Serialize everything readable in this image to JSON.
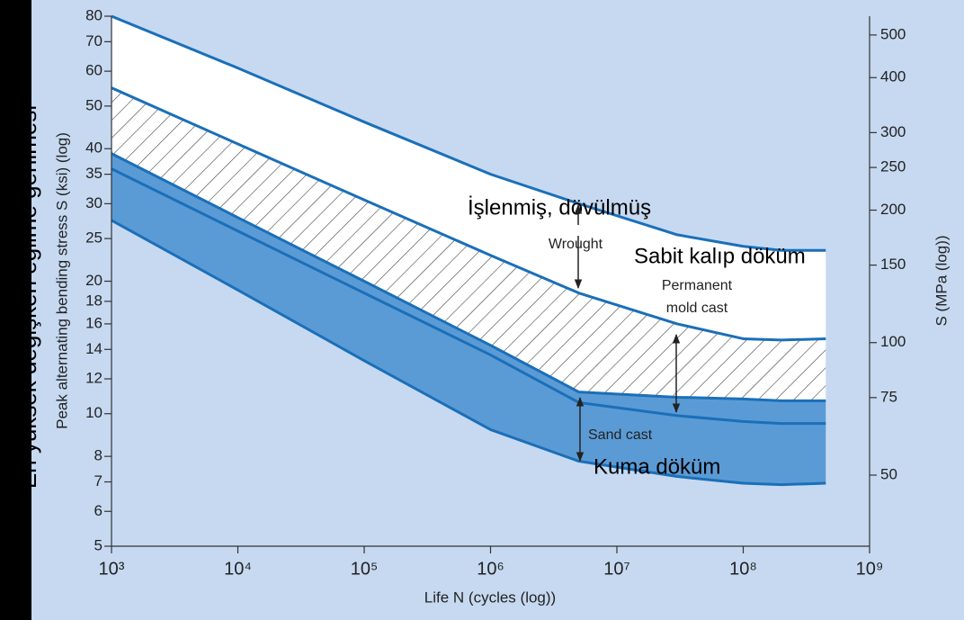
{
  "chart_data": {
    "type": "line",
    "x_label": "Life N (cycles (log))",
    "y_label": "Peak alternating bending stress S (ksi) (log)",
    "y2_label": "S (MPa (log))",
    "side_title": "En yüksek değişken eğilme gerilmesi",
    "x": [
      1000,
      10000,
      100000,
      1000000,
      5000000,
      30000000,
      100000000,
      200000000,
      450000000
    ],
    "log_x": true,
    "log_y": true,
    "xlim": [
      1000,
      1000000000
    ],
    "xticks": [
      {
        "value": 1000,
        "label": "10³"
      },
      {
        "value": 10000,
        "label": "10⁴"
      },
      {
        "value": 100000,
        "label": "10⁵"
      },
      {
        "value": 1000000,
        "label": "10⁶"
      },
      {
        "value": 10000000,
        "label": "10⁷"
      },
      {
        "value": 100000000,
        "label": "10⁸"
      },
      {
        "value": 1000000000,
        "label": "10⁹"
      }
    ],
    "ylim": [
      5,
      80
    ],
    "yticks": [
      5,
      6,
      7,
      8,
      10,
      12,
      14,
      16,
      18,
      20,
      25,
      30,
      35,
      40,
      50,
      60,
      70,
      80
    ],
    "y2lim": [
      34.47,
      551.6
    ],
    "y2ticks": [
      50,
      75,
      100,
      150,
      200,
      250,
      300,
      400,
      500
    ],
    "background": "#c6d9f1",
    "series": [
      {
        "color": "#1a6fb9",
        "fill": "#ffffff",
        "values": [
          80,
          61,
          46,
          35,
          30,
          25.5,
          24,
          23.5,
          23.5
        ]
      },
      {
        "color": "#1a6fb9",
        "fill": "#ffffff",
        "hatch": true,
        "values": [
          55,
          41,
          30.6,
          22.9,
          18.8,
          16,
          14.8,
          14.7,
          14.8
        ]
      },
      {
        "color": "#1a6fb9",
        "fill": "#5b9bd5",
        "values": [
          39,
          27.9,
          20,
          14.3,
          11.2,
          10.9,
          10.8,
          10.7,
          10.7
        ]
      },
      {
        "color": "#1a6fb9",
        "fill": "#5b9bd5",
        "values": [
          36,
          26,
          18.8,
          13.6,
          10.6,
          9.9,
          9.6,
          9.5,
          9.5
        ]
      },
      {
        "color": "#1a6fb9",
        "values": [
          27.5,
          19.1,
          13.2,
          9.2,
          7.8,
          7.2,
          6.95,
          6.9,
          6.95
        ]
      }
    ],
    "annotations": [
      {
        "text": "İşlenmiş, dövülmüş"
      },
      {
        "text": "Sabit kalıp döküm"
      },
      {
        "text": "Kuma döküm"
      },
      {
        "text": "Wrought"
      },
      {
        "lines": [
          "Permanent",
          "mold cast"
        ]
      },
      {
        "text": "Sand cast"
      }
    ]
  }
}
